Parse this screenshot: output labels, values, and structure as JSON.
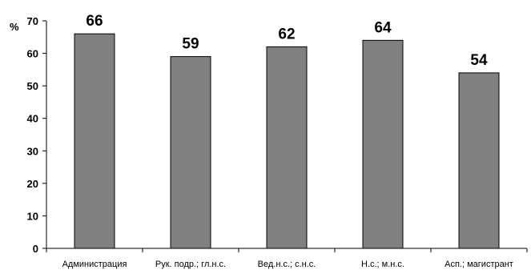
{
  "chart_data": {
    "type": "bar",
    "title": "",
    "xlabel": "",
    "ylabel": "%",
    "ylim": [
      0,
      70
    ],
    "ytick_step": 10,
    "grid": false,
    "bar_color": "#808080",
    "categories": [
      "Администрация",
      "Рук. подр.; гл.н.с.",
      "Вед.н.с.; с.н.с.",
      "Н.с.; м.н.с.",
      "Асп.; магистрант"
    ],
    "values": [
      66,
      59,
      62,
      64,
      54
    ],
    "data_labels": [
      "66",
      "59",
      "62",
      "64",
      "54"
    ]
  }
}
